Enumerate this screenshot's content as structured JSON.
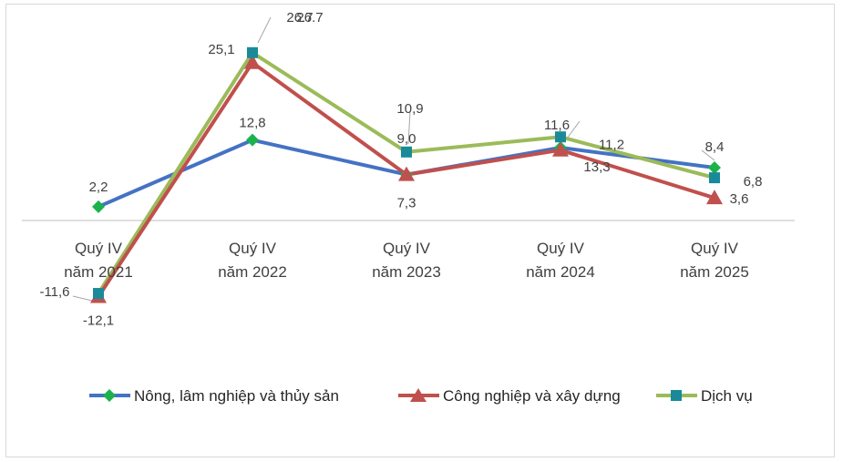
{
  "chart_data": {
    "type": "line",
    "title": "",
    "xlabel": "",
    "ylabel": "",
    "ylim": [
      -14,
      28
    ],
    "grid": false,
    "legend": "bottom",
    "categories": [
      [
        "Quý IV",
        "năm 2021"
      ],
      [
        "Quý IV",
        "năm 2022"
      ],
      [
        "Quý IV",
        "năm 2023"
      ],
      [
        "Quý IV",
        "năm 2024"
      ],
      [
        "Quý IV",
        "năm 2025"
      ]
    ],
    "series": [
      {
        "name": "Nông, lâm nghiệp và thủy sản",
        "color": "#4472c4",
        "marker": "diamond",
        "marker_color": "#1bb24b",
        "values": [
          2.2,
          12.8,
          7.3,
          11.6,
          8.4
        ],
        "labels": [
          "2,2",
          "12,8",
          "",
          "11,6",
          "8,4"
        ]
      },
      {
        "name": "Công nghiệp và xây dựng",
        "color": "#c0504d",
        "marker": "triangle",
        "marker_color": "#c0504d",
        "values": [
          -12.1,
          25.1,
          7.3,
          11.2,
          3.6
        ],
        "labels": [
          "-12,1",
          "25,1",
          "7,3",
          "11,2",
          "3,6"
        ]
      },
      {
        "name": "Dịch vụ",
        "color": "#9bbb59",
        "marker": "square",
        "marker_color": "#1a8a99",
        "values": [
          -11.6,
          26.7,
          10.9,
          13.3,
          6.8
        ],
        "labels": [
          "-11,6",
          "26.7",
          "10,9",
          "13,3",
          "6,8"
        ]
      }
    ],
    "annotations": [
      "26.7",
      "9,0"
    ]
  }
}
